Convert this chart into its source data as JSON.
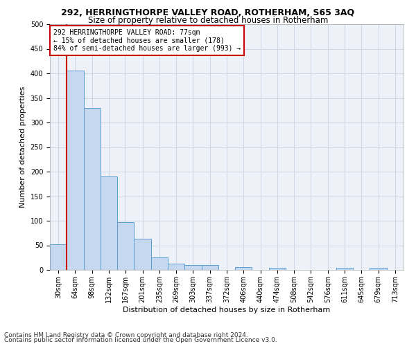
{
  "title1": "292, HERRINGTHORPE VALLEY ROAD, ROTHERHAM, S65 3AQ",
  "title2": "Size of property relative to detached houses in Rotherham",
  "xlabel": "Distribution of detached houses by size in Rotherham",
  "ylabel": "Number of detached properties",
  "footnote1": "Contains HM Land Registry data © Crown copyright and database right 2024.",
  "footnote2": "Contains public sector information licensed under the Open Government Licence v3.0.",
  "annotation_line1": "292 HERRINGTHORPE VALLEY ROAD: 77sqm",
  "annotation_line2": "← 15% of detached houses are smaller (178)",
  "annotation_line3": "84% of semi-detached houses are larger (993) →",
  "bar_labels": [
    "30sqm",
    "64sqm",
    "98sqm",
    "132sqm",
    "167sqm",
    "201sqm",
    "235sqm",
    "269sqm",
    "303sqm",
    "337sqm",
    "372sqm",
    "406sqm",
    "440sqm",
    "474sqm",
    "508sqm",
    "542sqm",
    "576sqm",
    "611sqm",
    "645sqm",
    "679sqm",
    "713sqm"
  ],
  "bar_values": [
    52,
    405,
    330,
    190,
    97,
    63,
    25,
    13,
    10,
    10,
    0,
    6,
    0,
    4,
    0,
    0,
    0,
    4,
    0,
    4,
    0
  ],
  "bar_color": "#c5d8f0",
  "bar_edge_color": "#5a9fd4",
  "vline_x": 1,
  "vline_color": "#cc0000",
  "ylim": [
    0,
    500
  ],
  "yticks": [
    0,
    50,
    100,
    150,
    200,
    250,
    300,
    350,
    400,
    450,
    500
  ],
  "grid_color": "#d0d8e8",
  "bg_color": "#eef2f8",
  "annotation_box_color": "#ffffff",
  "annotation_border_color": "#cc0000",
  "title1_fontsize": 9,
  "title2_fontsize": 8.5,
  "axis_label_fontsize": 8,
  "tick_fontsize": 7,
  "footnote_fontsize": 6.5,
  "annotation_fontsize": 7
}
